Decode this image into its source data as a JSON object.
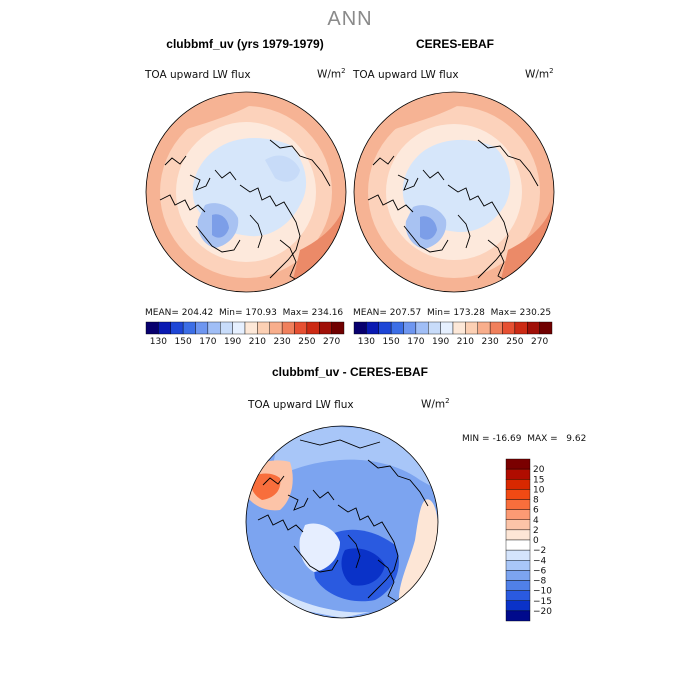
{
  "figure": {
    "title": "ANN"
  },
  "panels": [
    {
      "title": "clubbmf_uv (yrs 1979-1979)",
      "variable": "TOA upward LW flux",
      "units_base": "W/m",
      "units_exp": "2",
      "stats": {
        "mean_label": "MEAN=",
        "mean": "204.42",
        "min_label": "Min=",
        "min": "170.93",
        "max_label": "Max=",
        "max": "234.16"
      }
    },
    {
      "title": "CERES-EBAF",
      "variable": "TOA upward LW flux",
      "units_base": "W/m",
      "units_exp": "2",
      "stats": {
        "mean_label": "MEAN=",
        "mean": "207.57",
        "min_label": "Min=",
        "min": "173.28",
        "max_label": "Max=",
        "max": "230.25"
      }
    },
    {
      "title": "clubbmf_uv - CERES-EBAF",
      "variable": "TOA upward LW flux",
      "units_base": "W/m",
      "units_exp": "2",
      "stats": {
        "min_label": "MIN =",
        "min": "-16.69",
        "max_label": "MAX =",
        "max": "9.62"
      }
    }
  ],
  "chart_data": [
    {
      "type": "heatmap",
      "projection": "north-polar-stereographic",
      "title": "clubbmf_uv (yrs 1979-1979)",
      "variable": "TOA upward LW flux",
      "units": "W/m^2",
      "mean": 204.42,
      "min": 170.93,
      "max": 234.16,
      "colorbar": {
        "orientation": "horizontal",
        "levels": [
          130,
          140,
          150,
          160,
          170,
          180,
          190,
          200,
          210,
          220,
          230,
          240,
          250,
          260,
          270
        ],
        "tick_labels": [
          "130",
          "150",
          "170",
          "190",
          "210",
          "230",
          "250",
          "270"
        ],
        "colors": [
          "#08006e",
          "#0a1ab2",
          "#1e46d6",
          "#3c6ee6",
          "#6e96f0",
          "#a0bef6",
          "#c8dcfa",
          "#e6f0ff",
          "#fde8d8",
          "#fcd0b4",
          "#f8ae8c",
          "#f0805c",
          "#e65032",
          "#cc2a14",
          "#a01008",
          "#700000"
        ]
      }
    },
    {
      "type": "heatmap",
      "projection": "north-polar-stereographic",
      "title": "CERES-EBAF",
      "variable": "TOA upward LW flux",
      "units": "W/m^2",
      "mean": 207.57,
      "min": 173.28,
      "max": 230.25,
      "colorbar": {
        "orientation": "horizontal",
        "levels": [
          130,
          140,
          150,
          160,
          170,
          180,
          190,
          200,
          210,
          220,
          230,
          240,
          250,
          260,
          270
        ],
        "tick_labels": [
          "130",
          "150",
          "170",
          "190",
          "210",
          "230",
          "250",
          "270"
        ],
        "colors": [
          "#08006e",
          "#0a1ab2",
          "#1e46d6",
          "#3c6ee6",
          "#6e96f0",
          "#a0bef6",
          "#c8dcfa",
          "#e6f0ff",
          "#fde8d8",
          "#fcd0b4",
          "#f8ae8c",
          "#f0805c",
          "#e65032",
          "#cc2a14",
          "#a01008",
          "#700000"
        ]
      }
    },
    {
      "type": "heatmap",
      "projection": "north-polar-stereographic",
      "title": "clubbmf_uv - CERES-EBAF",
      "variable": "TOA upward LW flux",
      "units": "W/m^2",
      "min": -16.69,
      "max": 9.62,
      "colorbar": {
        "orientation": "vertical",
        "levels": [
          "20",
          "15",
          "10",
          "8",
          "6",
          "4",
          "2",
          "0",
          "−2",
          "−4",
          "−6",
          "−8",
          "−10",
          "−15",
          "−20"
        ],
        "colors": [
          "#7a0000",
          "#b00c00",
          "#d82800",
          "#f04a14",
          "#f86e3c",
          "#fc9a74",
          "#fcc4a8",
          "#fde6d6",
          "#ffffff",
          "#d4e4fc",
          "#a8c6f8",
          "#7ca4f0",
          "#5080e8",
          "#2a5ae0",
          "#0a32c8",
          "#000a8c"
        ]
      }
    }
  ]
}
